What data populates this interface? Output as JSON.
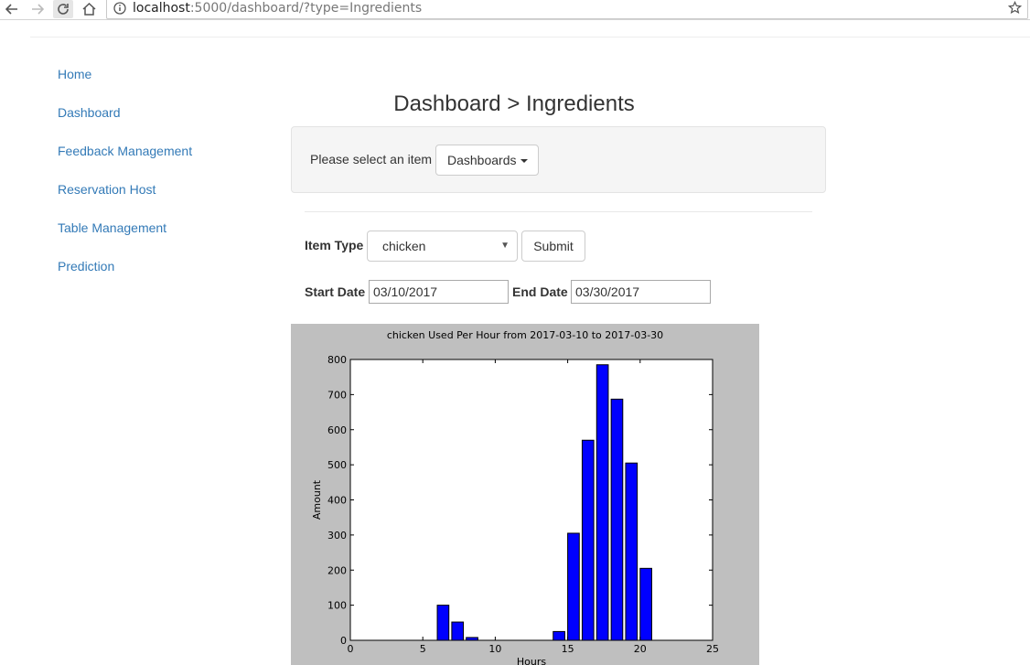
{
  "browser": {
    "url_host": "localhost",
    "url_path": ":5000/dashboard/?type=Ingredients"
  },
  "sidebar": {
    "items": [
      {
        "label": "Home"
      },
      {
        "label": "Dashboard"
      },
      {
        "label": "Feedback Management"
      },
      {
        "label": "Reservation Host"
      },
      {
        "label": "Table Management"
      },
      {
        "label": "Prediction"
      }
    ]
  },
  "main": {
    "title": "Dashboard > Ingredients",
    "select_prompt": "Please select an item",
    "dropdown_label": "Dashboards",
    "item_type_label": "Item Type",
    "item_type_value": "chicken",
    "submit_label": "Submit",
    "start_date_label": "Start Date",
    "start_date_value": "03/10/2017",
    "end_date_label": "End Date",
    "end_date_value": "03/30/2017"
  },
  "chart_data": {
    "type": "bar",
    "title": "chicken Used Per Hour from 2017-03-10 to 2017-03-30",
    "xlabel": "Hours",
    "ylabel": "Amount",
    "xlim": [
      0,
      25
    ],
    "ylim": [
      0,
      800
    ],
    "xticks": [
      0,
      5,
      10,
      15,
      20,
      25
    ],
    "yticks": [
      0,
      100,
      200,
      300,
      400,
      500,
      600,
      700,
      800
    ],
    "bar_color": "#0000ff",
    "background": "#bfbfbf",
    "x": [
      6,
      7,
      8,
      14,
      15,
      16,
      17,
      18,
      19,
      20
    ],
    "values": [
      100,
      52,
      8,
      25,
      305,
      570,
      785,
      687,
      505,
      205
    ]
  }
}
